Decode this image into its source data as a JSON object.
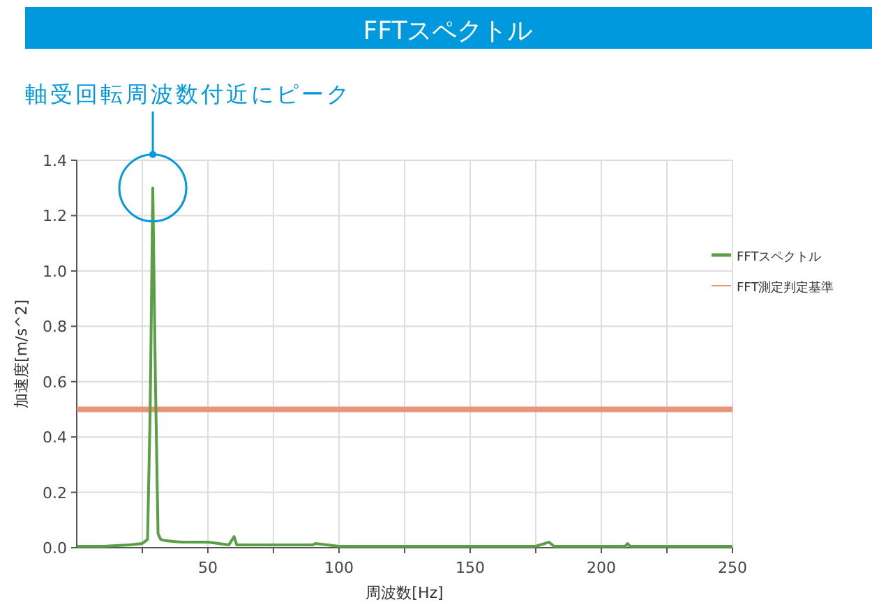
{
  "chart_data": {
    "type": "line",
    "title": "FFTスペクトル",
    "xlabel": "周波数[Hz]",
    "ylabel": "加速度[m/s^2]",
    "annotations": [
      "軸受回転周波数付近にピーク"
    ],
    "xlim": [
      0,
      250
    ],
    "xticks": [
      {
        "value": 25,
        "label": null
      },
      50,
      {
        "value": 75,
        "label": null
      },
      100,
      {
        "value": 125,
        "label": null
      },
      150,
      {
        "value": 175,
        "label": null
      },
      200,
      {
        "value": 225,
        "label": null
      },
      250
    ],
    "ylim": [
      0,
      1.4
    ],
    "yticks": [
      "0.0",
      0.2,
      0.4,
      0.6,
      0.8,
      "1.0",
      1.2,
      1.4
    ],
    "series": [
      {
        "name": "FFTスペクトル",
        "color": "#5a9e46",
        "x": [
          0,
          10,
          20,
          25,
          27,
          28,
          29,
          30,
          31,
          32,
          34,
          40,
          50,
          58,
          60,
          61,
          75,
          90,
          91,
          100,
          125,
          150,
          175,
          180,
          182,
          209,
          210,
          211,
          230,
          250
        ],
        "values": [
          0.005,
          0.005,
          0.01,
          0.015,
          0.03,
          0.5,
          1.3,
          0.6,
          0.05,
          0.03,
          0.025,
          0.02,
          0.02,
          0.01,
          0.04,
          0.01,
          0.01,
          0.01,
          0.015,
          0.005,
          0.005,
          0.005,
          0.005,
          0.02,
          0.005,
          0.005,
          0.015,
          0.005,
          0.005,
          0.005
        ]
      }
    ],
    "ref_lines": [
      {
        "axis": "y",
        "value": 0.5,
        "label": "FFT測定判定基準",
        "color": "#e8967a"
      }
    ],
    "grid": true,
    "legend": "right",
    "marker": "none",
    "line_style": "solid"
  }
}
